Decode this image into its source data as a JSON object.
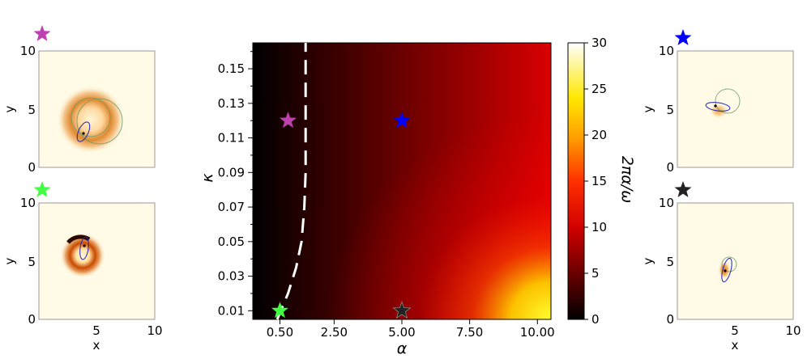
{
  "chart_data": [
    {
      "type": "heatmap",
      "id": "main",
      "title": "",
      "xlabel": "α",
      "ylabel": "κ",
      "xlim": [
        -0.5,
        10.5
      ],
      "ylim": [
        0.005,
        0.165
      ],
      "x_ticks": [
        0.5,
        2.5,
        5.0,
        7.5,
        10.0
      ],
      "x_tick_labels": [
        "0.50",
        "2.50",
        "5.00",
        "7.50",
        "10.00"
      ],
      "y_ticks": [
        0.01,
        0.03,
        0.05,
        0.07,
        0.09,
        0.11,
        0.13,
        0.15
      ],
      "y_tick_labels": [
        "0.01",
        "0.03",
        "0.05",
        "0.07",
        "0.09",
        "0.11",
        "0.13",
        "0.15"
      ],
      "colorbar": {
        "label": "2πα/ω",
        "range": [
          0,
          30
        ],
        "ticks": [
          0,
          5,
          10,
          15,
          20,
          25,
          30
        ],
        "tick_labels": [
          "0",
          "5",
          "10",
          "15",
          "20",
          "25",
          "30"
        ],
        "colormap": "hot"
      },
      "boundary_curve": {
        "style": "dashed",
        "color": "#ffffff",
        "points": [
          [
            0.4,
            0.005
          ],
          [
            0.8,
            0.02
          ],
          [
            1.1,
            0.035
          ],
          [
            1.3,
            0.05
          ],
          [
            1.4,
            0.07
          ],
          [
            1.45,
            0.09
          ],
          [
            1.45,
            0.11
          ],
          [
            1.45,
            0.13
          ],
          [
            1.45,
            0.165
          ]
        ]
      },
      "markers": [
        {
          "name": "magenta",
          "alpha": 0.8,
          "kappa": 0.12,
          "color": "#c040b0"
        },
        {
          "name": "blue",
          "alpha": 5.0,
          "kappa": 0.12,
          "color": "#0000ff"
        },
        {
          "name": "green",
          "alpha": 0.5,
          "kappa": 0.01,
          "color": "#40ff40"
        },
        {
          "name": "black",
          "alpha": 5.0,
          "kappa": 0.01,
          "color": "#222222"
        }
      ]
    },
    {
      "type": "heatmap",
      "id": "magenta-inset",
      "xlabel": "",
      "ylabel": "y",
      "xlim": [
        0,
        10
      ],
      "ylim": [
        0,
        10
      ],
      "y_tick_labels": [
        "0",
        "5",
        "10"
      ],
      "marker_color": "#c040b0"
    },
    {
      "type": "heatmap",
      "id": "green-inset",
      "xlabel": "x",
      "ylabel": "y",
      "xlim": [
        0,
        10
      ],
      "ylim": [
        0,
        10
      ],
      "x_tick_labels": [
        "5",
        "10"
      ],
      "y_tick_labels": [
        "0",
        "5",
        "10"
      ],
      "marker_color": "#40ff40"
    },
    {
      "type": "heatmap",
      "id": "blue-inset",
      "xlabel": "",
      "ylabel": "y",
      "xlim": [
        0,
        10
      ],
      "ylim": [
        0,
        10
      ],
      "y_tick_labels": [
        "0",
        "5",
        "10"
      ],
      "marker_color": "#0000ff"
    },
    {
      "type": "heatmap",
      "id": "black-inset",
      "xlabel": "x",
      "ylabel": "y",
      "xlim": [
        0,
        10
      ],
      "ylim": [
        0,
        10
      ],
      "x_tick_labels": [
        "5",
        "10"
      ],
      "y_tick_labels": [
        "0",
        "5",
        "10"
      ],
      "marker_color": "#222222"
    }
  ]
}
